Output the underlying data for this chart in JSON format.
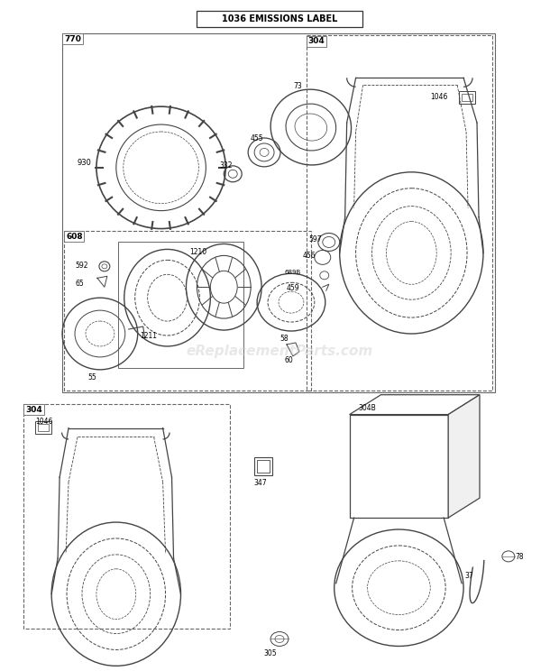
{
  "title": "1036 EMISSIONS LABEL",
  "bg_color": "#ffffff",
  "lc": "#444444",
  "watermark": "eReplacementParts.com",
  "watermark_color": "#cccccc",
  "watermark_alpha": 0.45
}
